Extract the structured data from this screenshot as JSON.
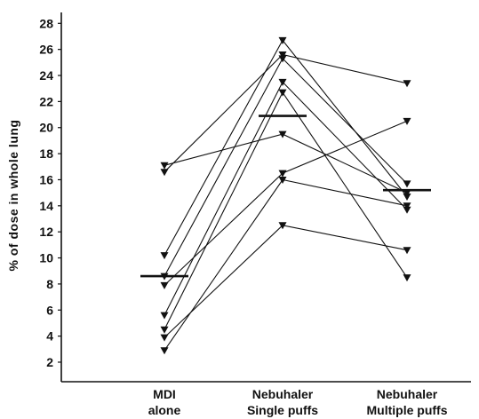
{
  "chart_data": {
    "type": "line",
    "ylabel": "% of dose in whole lung",
    "ylim": [
      0,
      29.5
    ],
    "y_ticks": [
      2,
      4,
      6,
      8,
      10,
      12,
      14,
      16,
      18,
      20,
      22,
      24,
      26,
      28
    ],
    "y_tick_labels": [
      "2",
      "4",
      "6",
      "8",
      "10",
      "12",
      "14",
      "16",
      "18",
      "20",
      "22",
      "24",
      "26",
      "28"
    ],
    "categories": [
      {
        "line1": "MDI",
        "line2": "alone"
      },
      {
        "line1": "Nebuhaler",
        "line2": "Single puffs"
      },
      {
        "line1": "Nebuhaler",
        "line2": "Multiple puffs"
      }
    ],
    "marker": "down-triangle",
    "series": [
      {
        "values": [
          17.1,
          19.5,
          15.0
        ]
      },
      {
        "values": [
          16.6,
          25.6,
          23.4
        ]
      },
      {
        "values": [
          10.2,
          26.7,
          14.7
        ]
      },
      {
        "values": [
          8.6,
          25.3,
          15.7
        ]
      },
      {
        "values": [
          7.9,
          16.5,
          20.5
        ]
      },
      {
        "values": [
          5.6,
          23.5,
          13.7
        ]
      },
      {
        "values": [
          4.5,
          22.7,
          8.5
        ]
      },
      {
        "values": [
          3.9,
          12.5,
          10.6
        ]
      },
      {
        "values": [
          2.9,
          16.0,
          14.0
        ]
      }
    ],
    "means": [
      8.6,
      20.9,
      15.2
    ],
    "colors": {
      "ink": "#111111",
      "background": "#ffffff"
    }
  }
}
